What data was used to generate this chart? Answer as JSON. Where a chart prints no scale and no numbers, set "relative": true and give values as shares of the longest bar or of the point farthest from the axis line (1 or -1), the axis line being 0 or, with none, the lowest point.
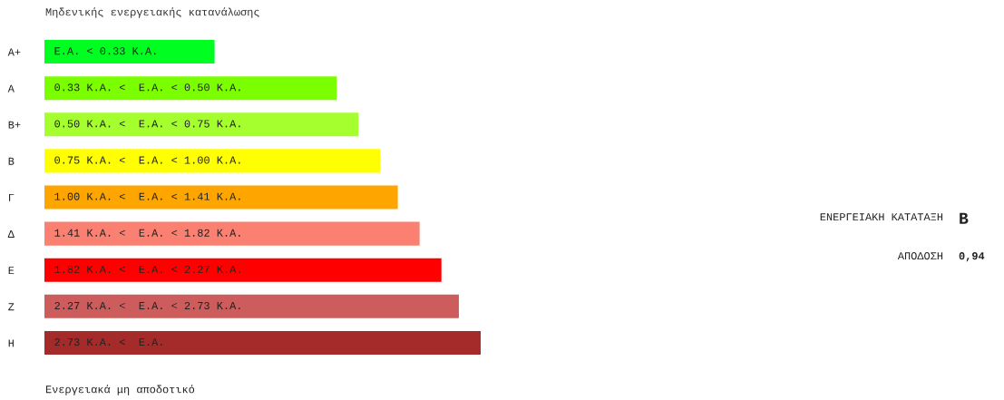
{
  "chart_data": {
    "type": "bar",
    "orientation": "horizontal",
    "relative": true,
    "tick_labels": "y",
    "title": "Μηδενικής ενεργειακής κατανάλωσης",
    "categories": [
      "Α+",
      "Α",
      "Β+",
      "Β",
      "Γ",
      "Δ",
      "Ε",
      "Ζ",
      "Η"
    ],
    "values": [
      0.39,
      0.67,
      0.72,
      0.77,
      0.81,
      0.86,
      0.91,
      0.95,
      1.0
    ],
    "colors": [
      "#00ff21",
      "#7bff00",
      "#a5ff2e",
      "#ffff00",
      "#ffa500",
      "#fa8072",
      "#ff0000",
      "#cd5c5c",
      "#a52a2a"
    ],
    "annotations": [
      "Ενεργειακά μη αποδοτικό",
      "ΕΝΕΡΓΕΙΑΚΗ ΚΑΤΑΤΑΞΗ",
      "Β",
      "ΑΠΟΔΟΣΗ",
      "0,94",
      {
        "text": "Ε.Α. < 0.33 Κ.Α.",
        "y": "Α+"
      },
      {
        "text": "0.33 Κ.Α. <  Ε.Α. < 0.50 Κ.Α.",
        "y": "Α"
      },
      {
        "text": "0.50 Κ.Α. <  Ε.Α. < 0.75 Κ.Α.",
        "y": "Β+"
      },
      {
        "text": "0.75 Κ.Α. <  Ε.Α. < 1.00 Κ.Α.",
        "y": "Β"
      },
      {
        "text": "1.00 Κ.Α. <  Ε.Α. < 1.41 Κ.Α.",
        "y": "Γ"
      },
      {
        "text": "1.41 Κ.Α. <  Ε.Α. < 1.82 Κ.Α.",
        "y": "Δ"
      },
      {
        "text": "1.82 Κ.Α. <  Ε.Α. < 2.27 Κ.Α.",
        "y": "Ε"
      },
      {
        "text": "2.27 Κ.Α. <  Ε.Α. < 2.73 Κ.Α.",
        "y": "Ζ"
      },
      {
        "text": "2.73 Κ.Α. <  Ε.Α.",
        "y": "Η"
      }
    ],
    "grid": false,
    "legend": false
  }
}
